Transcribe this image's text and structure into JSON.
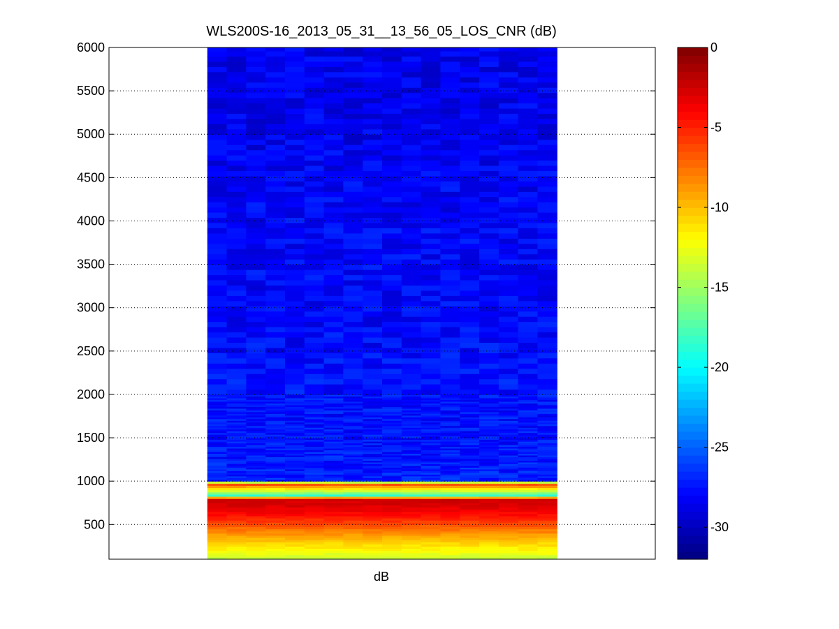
{
  "chart_data": {
    "type": "heatmap",
    "title": "WLS200S-16_2013_05_31__13_56_05_LOS_CNR (dB)",
    "xlabel": "dB",
    "ylabel": "",
    "ylim": [
      100,
      6000
    ],
    "yticks": [
      500,
      1000,
      1500,
      2000,
      2500,
      3000,
      3500,
      4000,
      4500,
      5000,
      5500,
      6000
    ],
    "grid": "y-dotted",
    "colormap": "jet",
    "colorbar": {
      "clim": [
        -32,
        0
      ],
      "ticks": [
        0,
        -5,
        -10,
        -15,
        -20,
        -25,
        -30
      ],
      "placement": "right"
    },
    "columns": 18,
    "data_extent_fraction": [
      0.18,
      0.82
    ],
    "profile": [
      {
        "range": 100,
        "cnr": -14
      },
      {
        "range": 200,
        "cnr": -12
      },
      {
        "range": 300,
        "cnr": -10.5
      },
      {
        "range": 400,
        "cnr": -8.5
      },
      {
        "range": 500,
        "cnr": -6.5
      },
      {
        "range": 600,
        "cnr": -4.5
      },
      {
        "range": 700,
        "cnr": -3
      },
      {
        "range": 800,
        "cnr": -2.5
      },
      {
        "range": 830,
        "cnr": -19
      },
      {
        "range": 970,
        "cnr": -6
      },
      {
        "range": 1000,
        "cnr": -19
      },
      {
        "range": 1010,
        "cnr": -27
      },
      {
        "range": 1500,
        "cnr": -27.5
      },
      {
        "range": 2000,
        "cnr": -27.5
      },
      {
        "range": 3000,
        "cnr": -28
      },
      {
        "range": 4000,
        "cnr": -28
      },
      {
        "range": 5000,
        "cnr": -28.5
      },
      {
        "range": 6000,
        "cnr": -28.5
      }
    ]
  }
}
